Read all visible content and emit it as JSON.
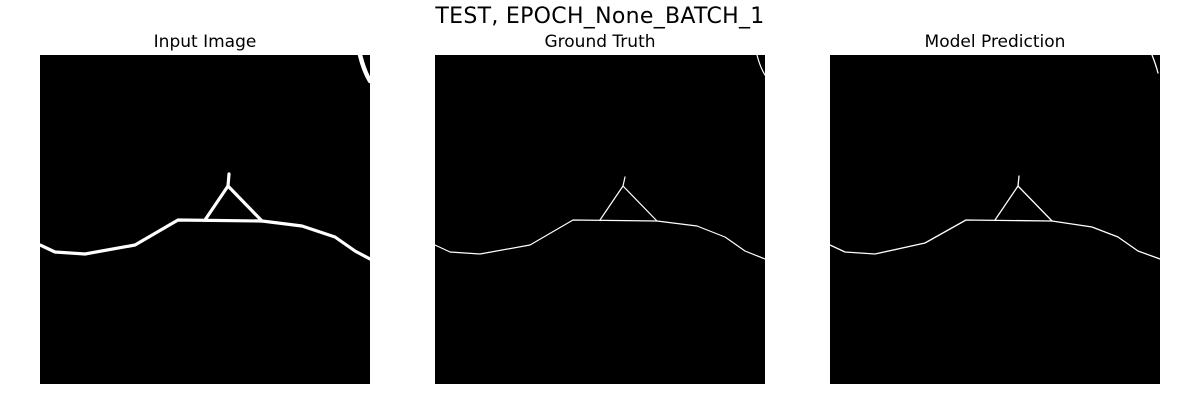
{
  "figure": {
    "suptitle": "TEST, EPOCH_None_BATCH_1",
    "background_color": "#ffffff",
    "image_background_color": "#000000",
    "line_color": "#ffffff"
  },
  "panels": [
    {
      "title": "Input Image",
      "content": "binary edge mask, thick white lines"
    },
    {
      "title": "Ground Truth",
      "content": "binary edge mask, thin white lines"
    },
    {
      "title": "Model Prediction",
      "content": "binary edge mask, thin white lines"
    }
  ]
}
